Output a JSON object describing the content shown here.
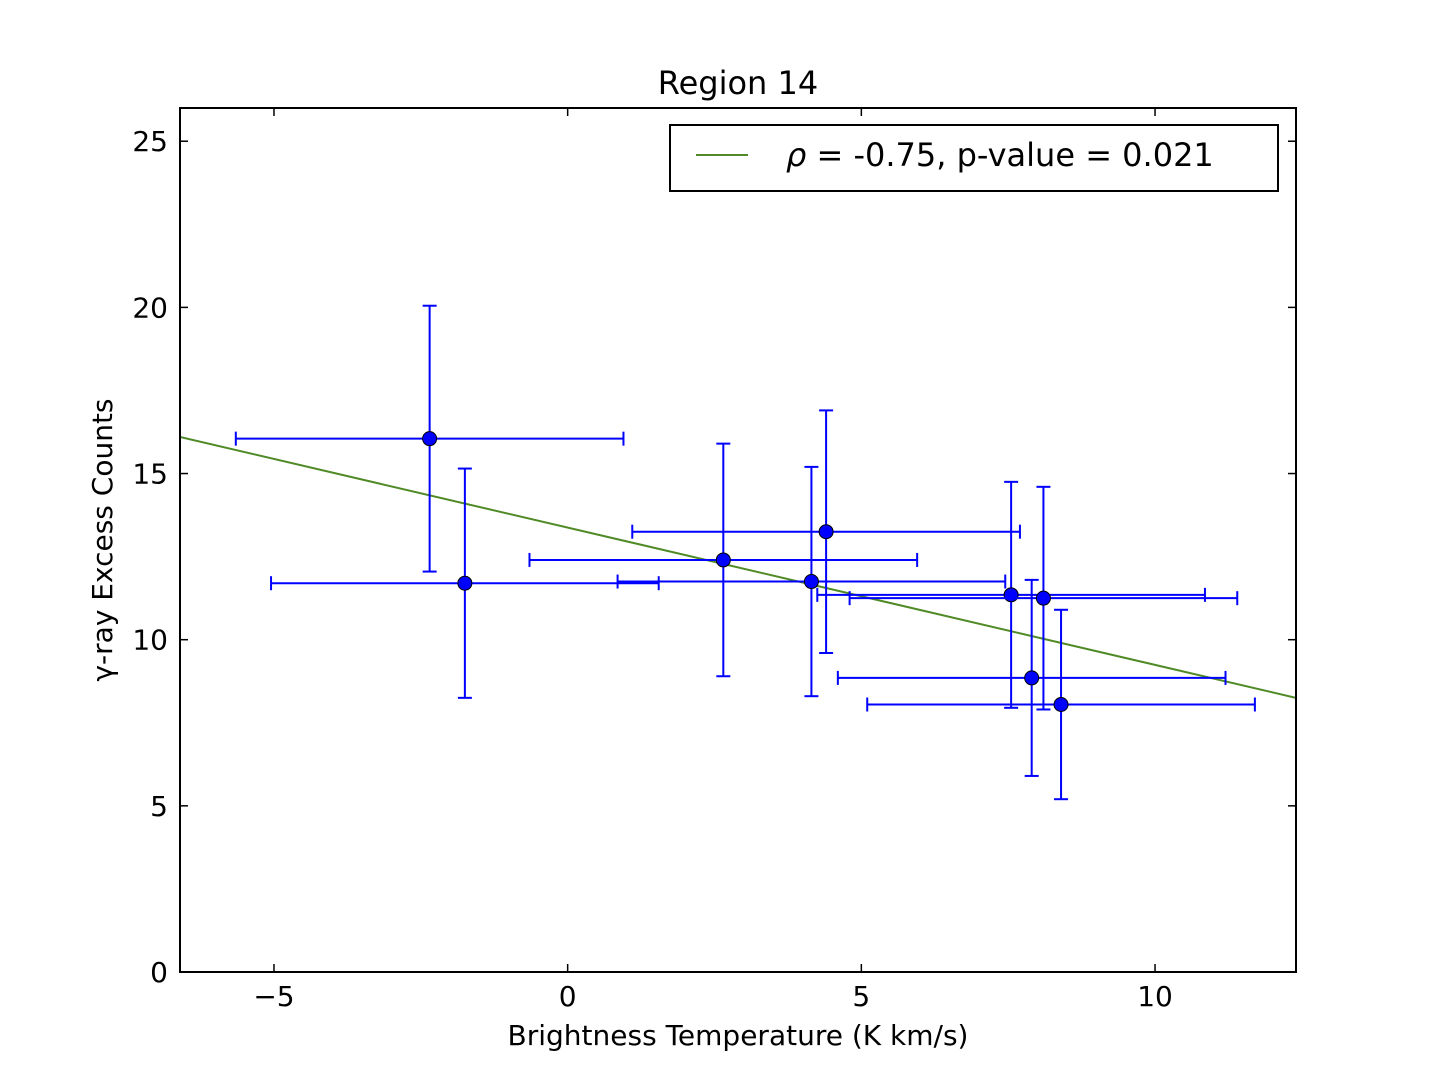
{
  "chart_data": {
    "type": "scatter",
    "title": "Region 14",
    "xlabel": "Brightness Temperature (K km/s)",
    "ylabel": "γ-ray Excess Counts",
    "xlim": [
      -6.6,
      12.4
    ],
    "ylim": [
      0,
      26
    ],
    "xticks": [
      -5,
      0,
      5,
      10
    ],
    "xtick_labels": [
      "−5",
      "0",
      "5",
      "10"
    ],
    "yticks": [
      0,
      5,
      10,
      15,
      20,
      25
    ],
    "ytick_labels": [
      "0",
      "5",
      "10",
      "15",
      "20",
      "25"
    ],
    "grid": false,
    "legend_position": "top-right",
    "colors": {
      "points": "#0000ff",
      "fit_line": "#4f8a26",
      "axes": "#000000"
    },
    "points": [
      {
        "x": -2.35,
        "y": 16.05,
        "xerr": 3.3,
        "yerr": 4.0
      },
      {
        "x": -1.75,
        "y": 11.7,
        "xerr": 3.3,
        "yerr": 3.45
      },
      {
        "x": 2.65,
        "y": 12.4,
        "xerr": 3.3,
        "yerr": 3.5
      },
      {
        "x": 4.15,
        "y": 11.75,
        "xerr": 3.3,
        "yerr": 3.45
      },
      {
        "x": 4.4,
        "y": 13.25,
        "xerr": 3.3,
        "yerr": 3.65
      },
      {
        "x": 7.55,
        "y": 11.35,
        "xerr": 3.3,
        "yerr": 3.4
      },
      {
        "x": 8.1,
        "y": 11.25,
        "xerr": 3.3,
        "yerr": 3.35
      },
      {
        "x": 7.9,
        "y": 8.85,
        "xerr": 3.3,
        "yerr": 2.95
      },
      {
        "x": 8.4,
        "y": 8.05,
        "xerr": 3.3,
        "yerr": 2.85
      }
    ],
    "fit_line": {
      "label": "ρ = -0.75, p-value = 0.021",
      "rho_symbol": "ρ",
      "label_rest": " = -0.75, p-value = 0.021",
      "x": [
        -6.6,
        12.4
      ],
      "y": [
        16.1,
        8.25
      ]
    }
  }
}
